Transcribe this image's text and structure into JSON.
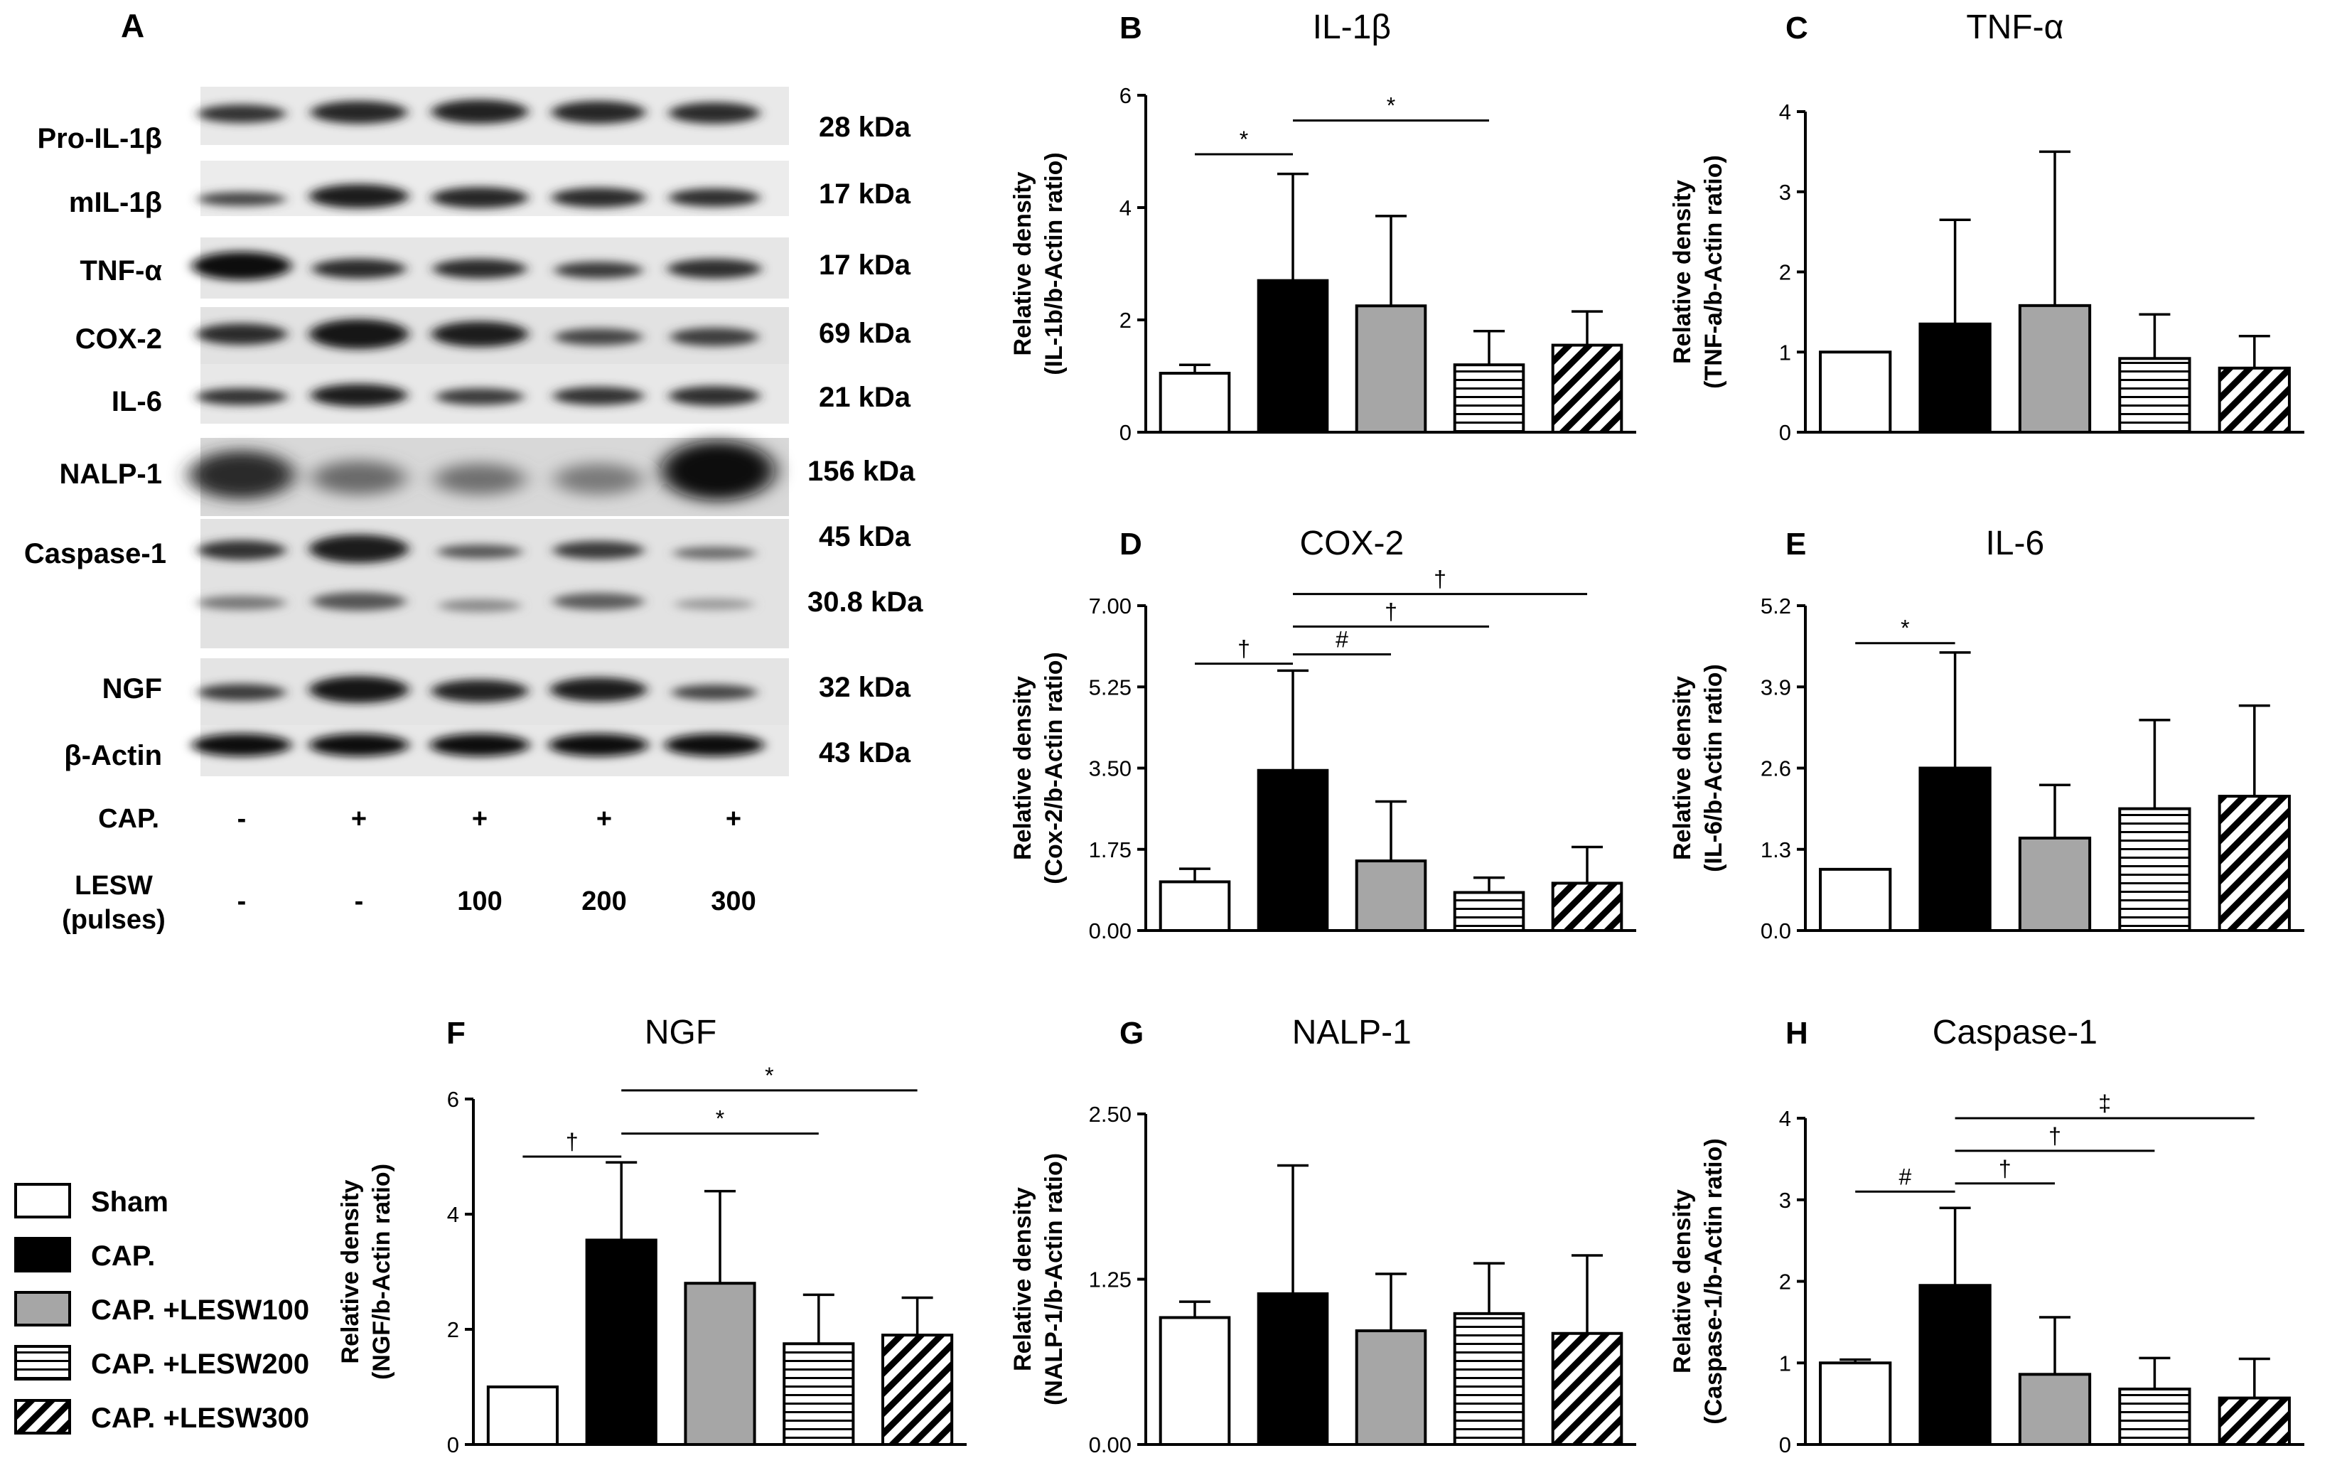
{
  "panel_a": {
    "label": "A",
    "proteins": [
      "Pro-IL-1β",
      "mIL-1β",
      "TNF-α",
      "COX-2",
      "IL-6",
      "NALP-1",
      "Caspase-1",
      "NGF",
      "β-Actin"
    ],
    "kda": [
      "28 kDa",
      "17 kDa",
      "17 kDa",
      "69 kDa",
      "21 kDa",
      "156 kDa",
      "45 kDa",
      "30.8 kDa",
      "32 kDa",
      "43 kDa"
    ],
    "cap_label": "CAP.",
    "cap_values": [
      "-",
      "+",
      "+",
      "+",
      "+"
    ],
    "lesw_label_1": "LESW",
    "lesw_label_2": "(pulses)",
    "lesw_values": [
      "-",
      "-",
      "100",
      "200",
      "300"
    ]
  },
  "legend": {
    "items": [
      {
        "label": "Sham",
        "fill": "white"
      },
      {
        "label": "CAP.",
        "fill": "black"
      },
      {
        "label": "CAP. +LESW100",
        "fill": "gray"
      },
      {
        "label": "CAP. +LESW200",
        "fill": "hlines"
      },
      {
        "label": "CAP. +LESW300",
        "fill": "diag"
      }
    ]
  },
  "colors": {
    "black": "#000000",
    "gray": "#a6a6a6",
    "white": "#ffffff"
  },
  "chart_data": [
    {
      "type": "bar",
      "panel": "B",
      "title": "IL-1β",
      "ylabel_1": "Relative density",
      "ylabel_2": "(IL-1b/b-Actin ratio)",
      "categories": [
        "Sham",
        "CAP.",
        "CAP. +LESW100",
        "CAP. +LESW200",
        "CAP. +LESW300"
      ],
      "values": [
        1.05,
        2.7,
        2.25,
        1.2,
        1.55
      ],
      "errors": [
        0.15,
        1.9,
        1.6,
        0.6,
        0.6
      ],
      "ylim": [
        0,
        6
      ],
      "ticks": [
        0,
        2,
        4,
        6
      ],
      "tick_labels": [
        "0",
        "2",
        "4",
        "6"
      ],
      "significance": [
        {
          "from": 0,
          "to": 1,
          "symbol": "*",
          "level": 4.95
        },
        {
          "from": 1,
          "to": 3,
          "symbol": "*",
          "level": 5.55
        }
      ]
    },
    {
      "type": "bar",
      "panel": "C",
      "title": "TNF-α",
      "ylabel_1": "Relative density",
      "ylabel_2": "(TNF-a/b-Actin ratio)",
      "categories": [
        "Sham",
        "CAP.",
        "CAP. +LESW100",
        "CAP. +LESW200",
        "CAP. +LESW300"
      ],
      "values": [
        1.0,
        1.35,
        1.58,
        0.92,
        0.8
      ],
      "errors": [
        0,
        1.3,
        1.92,
        0.55,
        0.4
      ],
      "ylim": [
        0,
        4
      ],
      "ticks": [
        0,
        1,
        2,
        3,
        4
      ],
      "tick_labels": [
        "0",
        "1",
        "2",
        "3",
        "4"
      ],
      "significance": []
    },
    {
      "type": "bar",
      "panel": "D",
      "title": "COX-2",
      "ylabel_1": "Relative density",
      "ylabel_2": "(Cox-2/b-Actin ratio)",
      "categories": [
        "Sham",
        "CAP.",
        "CAP. +LESW100",
        "CAP. +LESW200",
        "CAP. +LESW300"
      ],
      "values": [
        1.05,
        3.45,
        1.5,
        0.82,
        1.02
      ],
      "errors": [
        0.28,
        2.15,
        1.28,
        0.32,
        0.78
      ],
      "ylim": [
        0,
        7
      ],
      "ticks": [
        0,
        1.75,
        3.5,
        5.25,
        7
      ],
      "tick_labels": [
        "0.00",
        "1.75",
        "3.50",
        "5.25",
        "7.00"
      ],
      "significance": [
        {
          "from": 0,
          "to": 1,
          "symbol": "†",
          "level": 5.75
        },
        {
          "from": 1,
          "to": 2,
          "symbol": "#",
          "level": 5.95
        },
        {
          "from": 1,
          "to": 3,
          "symbol": "†",
          "level": 6.55
        },
        {
          "from": 1,
          "to": 4,
          "symbol": "†",
          "level": 7.25
        }
      ]
    },
    {
      "type": "bar",
      "panel": "E",
      "title": "IL-6",
      "ylabel_1": "Relative density",
      "ylabel_2": "(IL-6/b-Actin ratio)",
      "categories": [
        "Sham",
        "CAP.",
        "CAP. +LESW100",
        "CAP. +LESW200",
        "CAP. +LESW300"
      ],
      "values": [
        0.98,
        2.6,
        1.48,
        1.95,
        2.15
      ],
      "errors": [
        0,
        1.85,
        0.85,
        1.42,
        1.45
      ],
      "ylim": [
        0,
        5.2
      ],
      "ticks": [
        0,
        1.3,
        2.6,
        3.9,
        5.2
      ],
      "tick_labels": [
        "0.0",
        "1.3",
        "2.6",
        "3.9",
        "5.2"
      ],
      "significance": [
        {
          "from": 0,
          "to": 1,
          "symbol": "*",
          "level": 4.6
        }
      ]
    },
    {
      "type": "bar",
      "panel": "F",
      "title": "NGF",
      "ylabel_1": "Relative density",
      "ylabel_2": "(NGF/b-Actin ratio)",
      "categories": [
        "Sham",
        "CAP.",
        "CAP. +LESW100",
        "CAP. +LESW200",
        "CAP. +LESW300"
      ],
      "values": [
        1.0,
        3.55,
        2.8,
        1.75,
        1.9
      ],
      "errors": [
        0,
        1.35,
        1.6,
        0.85,
        0.65
      ],
      "ylim": [
        0,
        6
      ],
      "ticks": [
        0,
        2,
        4,
        6
      ],
      "tick_labels": [
        "0",
        "2",
        "4",
        "6"
      ],
      "significance": [
        {
          "from": 0,
          "to": 1,
          "symbol": "†",
          "level": 5.0
        },
        {
          "from": 1,
          "to": 3,
          "symbol": "*",
          "level": 5.4
        },
        {
          "from": 1,
          "to": 4,
          "symbol": "*",
          "level": 6.15
        }
      ]
    },
    {
      "type": "bar",
      "panel": "G",
      "title": "NALP-1",
      "ylabel_1": "Relative density",
      "ylabel_2": "(NALP-1/b-Actin ratio)",
      "categories": [
        "Sham",
        "CAP.",
        "CAP. +LESW100",
        "CAP. +LESW200",
        "CAP. +LESW300"
      ],
      "values": [
        0.96,
        1.14,
        0.86,
        0.99,
        0.84
      ],
      "errors": [
        0.12,
        0.97,
        0.43,
        0.38,
        0.59
      ],
      "ylim": [
        0,
        2.5
      ],
      "ticks": [
        0,
        1.25,
        2.5
      ],
      "tick_labels": [
        "0.00",
        "1.25",
        "2.50"
      ],
      "significance": []
    },
    {
      "type": "bar",
      "panel": "H",
      "title": "Caspase-1",
      "ylabel_1": "Relative density",
      "ylabel_2": "(Caspase-1/b-Actin ratio)",
      "categories": [
        "Sham",
        "CAP.",
        "CAP. +LESW100",
        "CAP. +LESW200",
        "CAP. +LESW300"
      ],
      "values": [
        1.0,
        1.95,
        0.86,
        0.68,
        0.57
      ],
      "errors": [
        0.04,
        0.95,
        0.7,
        0.38,
        0.48
      ],
      "ylim": [
        0,
        4
      ],
      "ticks": [
        0,
        1,
        2,
        3,
        4
      ],
      "tick_labels": [
        "0",
        "1",
        "2",
        "3",
        "4"
      ],
      "significance": [
        {
          "from": 0,
          "to": 1,
          "symbol": "#",
          "level": 3.1
        },
        {
          "from": 1,
          "to": 2,
          "symbol": "†",
          "level": 3.2
        },
        {
          "from": 1,
          "to": 3,
          "symbol": "†",
          "level": 3.6
        },
        {
          "from": 1,
          "to": 4,
          "symbol": "‡",
          "level": 4.0
        }
      ]
    }
  ]
}
